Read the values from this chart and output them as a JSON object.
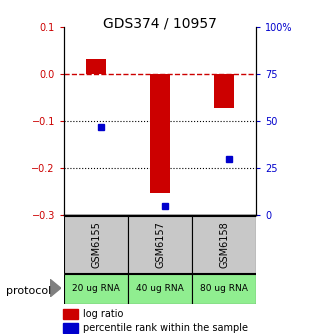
{
  "title": "GDS374 / 10957",
  "samples": [
    "GSM6155",
    "GSM6157",
    "GSM6158"
  ],
  "protocols": [
    "20 ug RNA",
    "40 ug RNA",
    "80 ug RNA"
  ],
  "log_ratios": [
    0.032,
    -0.253,
    -0.072
  ],
  "percentile_ranks": [
    47,
    5,
    30
  ],
  "ylim_left": [
    -0.3,
    0.1
  ],
  "ylim_right": [
    0,
    100
  ],
  "bar_color": "#cc0000",
  "dot_color": "#0000cc",
  "dashed_line_color": "#cc0000",
  "dotted_line_color": "#000000",
  "gray_box_color": "#c8c8c8",
  "green_box_color": "#90ee90",
  "legend_red": "log ratio",
  "legend_blue": "percentile rank within the sample"
}
